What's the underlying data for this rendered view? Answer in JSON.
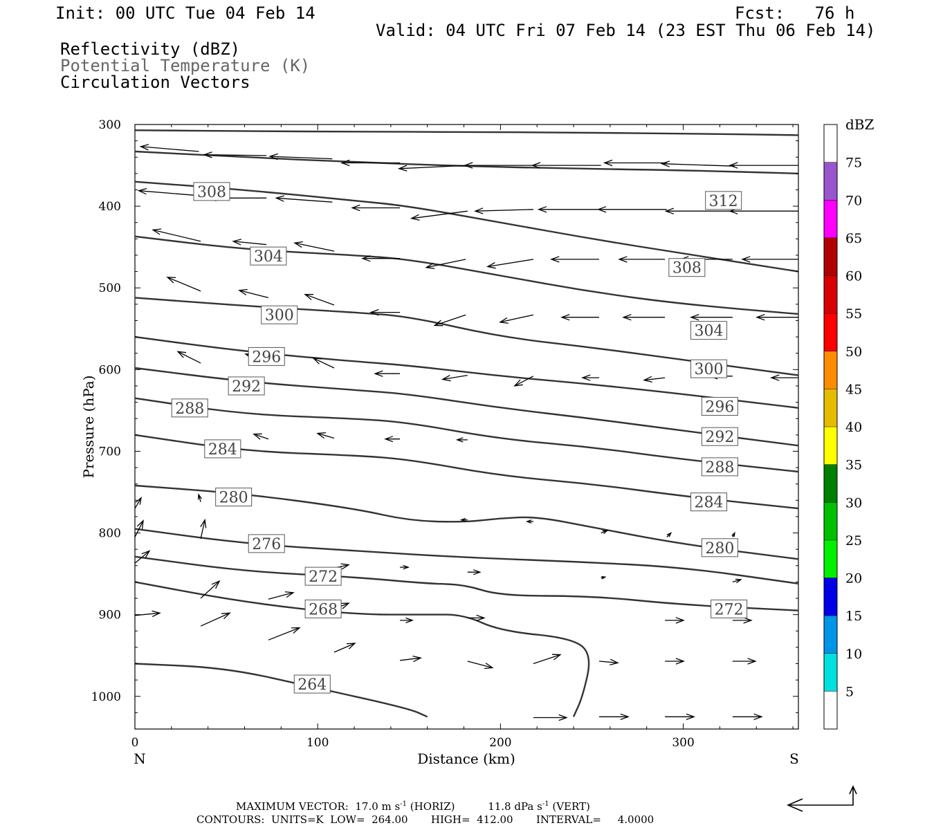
{
  "header": {
    "init": "Init: 00 UTC Tue 04 Feb 14",
    "fcst": "Fcst:   76 h",
    "valid": "Valid: 04 UTC Fri 07 Feb 14 (23 EST Thu 06 Feb 14)"
  },
  "legend_fields": {
    "reflectivity": "Reflectivity (dBZ)",
    "theta": "Potential Temperature (K)",
    "vectors": "Circulation Vectors"
  },
  "footer": {
    "max_vector_label": "MAXIMUM VECTOR:",
    "max_h": "17.0 m s",
    "exp": "-1",
    "horiz": "(HORIZ)",
    "max_v": "11.8 dPa s",
    "vert": "(VERT)",
    "contours": "CONTOURS:  UNITS=K  LOW=  264.00       HIGH=  412.00       INTERVAL=     4.0000"
  },
  "colors": {
    "contour": "#333333",
    "axis": "#000000",
    "label_text": "#444444"
  },
  "colorbar": {
    "unit": "dBZ",
    "levels": [
      5,
      10,
      15,
      20,
      25,
      30,
      35,
      40,
      45,
      50,
      55,
      60,
      65,
      70,
      75
    ],
    "colors": [
      "#ffffff",
      "#00e0e0",
      "#0095e6",
      "#0000e6",
      "#00f000",
      "#00c000",
      "#008000",
      "#ffff00",
      "#e6bc00",
      "#ff8c00",
      "#ff0000",
      "#d80000",
      "#b00000",
      "#ff00ff",
      "#9955cc",
      "#ffffff"
    ]
  },
  "chart_data": {
    "type": "cross-section",
    "xlabel": "Distance (km)",
    "ylabel": "Pressure (hPa)",
    "xlim": [
      0,
      363
    ],
    "ylim": [
      1040,
      300
    ],
    "x_ticks": [
      0,
      100,
      200,
      300
    ],
    "y_ticks": [
      300,
      400,
      500,
      600,
      700,
      800,
      900,
      1000
    ],
    "end_labels": {
      "left": "N",
      "right": "S"
    },
    "theta_contours": [
      {
        "x": [
          0,
          60,
          120,
          180,
          240,
          300,
          363
        ],
        "p": [
          307,
          308,
          309,
          309,
          310,
          311,
          313
        ]
      },
      {
        "x": [
          0,
          60,
          120,
          180,
          240,
          300,
          363
        ],
        "p": [
          333,
          340,
          346,
          351,
          354,
          356,
          360
        ]
      },
      {
        "x": [
          0,
          60,
          120,
          150,
          200,
          250,
          300,
          363
        ],
        "p": [
          370,
          380,
          393,
          400,
          420,
          440,
          458,
          480
        ]
      },
      {
        "x": [
          0,
          60,
          120,
          150,
          200,
          250,
          300,
          363
        ],
        "p": [
          437,
          453,
          460,
          465,
          485,
          505,
          520,
          532
        ]
      },
      {
        "x": [
          0,
          60,
          120,
          150,
          200,
          250,
          300,
          363
        ],
        "p": [
          512,
          522,
          530,
          535,
          560,
          573,
          588,
          607
        ]
      },
      {
        "x": [
          0,
          60,
          120,
          150,
          200,
          250,
          300,
          363
        ],
        "p": [
          560,
          578,
          590,
          595,
          608,
          618,
          630,
          647
        ]
      },
      {
        "x": [
          0,
          60,
          120,
          150,
          200,
          250,
          300,
          363
        ],
        "p": [
          598,
          615,
          625,
          630,
          647,
          660,
          675,
          693
        ]
      },
      {
        "x": [
          0,
          60,
          120,
          150,
          200,
          250,
          300,
          363
        ],
        "p": [
          635,
          655,
          660,
          665,
          685,
          695,
          710,
          725
        ]
      },
      {
        "x": [
          0,
          60,
          120,
          150,
          200,
          250,
          300,
          363
        ],
        "p": [
          680,
          700,
          705,
          710,
          730,
          740,
          755,
          770
        ]
      },
      {
        "x": [
          0,
          60,
          120,
          150,
          180,
          200,
          220,
          250,
          300,
          363
        ],
        "p": [
          742,
          752,
          770,
          785,
          787,
          782,
          780,
          793,
          814,
          832
        ]
      },
      {
        "x": [
          0,
          60,
          120,
          180,
          240,
          300,
          363
        ],
        "p": [
          795,
          813,
          822,
          830,
          835,
          842,
          862
        ]
      },
      {
        "x": [
          0,
          60,
          120,
          160,
          180,
          200,
          250,
          300,
          363
        ],
        "p": [
          829,
          847,
          854,
          862,
          863,
          877,
          877,
          888,
          895
        ]
      },
      {
        "x": [
          0,
          60,
          120,
          160,
          180,
          200,
          240,
          250,
          245,
          240
        ],
        "p": [
          860,
          885,
          900,
          900,
          900,
          920,
          929,
          950,
          1000,
          1025
        ]
      },
      {
        "x": [
          0,
          50,
          100,
          150,
          160
        ],
        "p": [
          960,
          965,
          990,
          1015,
          1025
        ]
      }
    ],
    "contour_labels": [
      {
        "text": "308",
        "x": 42,
        "p": 382
      },
      {
        "text": "312",
        "x": 322,
        "p": 393
      },
      {
        "text": "304",
        "x": 73,
        "p": 461
      },
      {
        "text": "308",
        "x": 302,
        "p": 475
      },
      {
        "text": "300",
        "x": 79,
        "p": 533
      },
      {
        "text": "304",
        "x": 314,
        "p": 552
      },
      {
        "text": "296",
        "x": 72,
        "p": 584
      },
      {
        "text": "300",
        "x": 314,
        "p": 599
      },
      {
        "text": "292",
        "x": 61,
        "p": 620
      },
      {
        "text": "296",
        "x": 320,
        "p": 645
      },
      {
        "text": "288",
        "x": 30,
        "p": 647
      },
      {
        "text": "292",
        "x": 320,
        "p": 682
      },
      {
        "text": "284",
        "x": 48,
        "p": 697
      },
      {
        "text": "288",
        "x": 320,
        "p": 719
      },
      {
        "text": "280",
        "x": 54,
        "p": 756
      },
      {
        "text": "284",
        "x": 314,
        "p": 762
      },
      {
        "text": "276",
        "x": 72,
        "p": 813
      },
      {
        "text": "280",
        "x": 320,
        "p": 818
      },
      {
        "text": "272",
        "x": 103,
        "p": 853
      },
      {
        "text": "268",
        "x": 103,
        "p": 893
      },
      {
        "text": "272",
        "x": 325,
        "p": 893
      },
      {
        "text": "264",
        "x": 97,
        "p": 985
      }
    ],
    "vectors": [
      {
        "x": 35,
        "p": 333,
        "dx": -28,
        "dp": -6
      },
      {
        "x": 72,
        "p": 338,
        "dx": -30,
        "dp": -1
      },
      {
        "x": 108,
        "p": 342,
        "dx": -30,
        "dp": -3
      },
      {
        "x": 145,
        "p": 347,
        "dx": -28,
        "dp": 0
      },
      {
        "x": 182,
        "p": 350,
        "dx": -33,
        "dp": 4
      },
      {
        "x": 218,
        "p": 350,
        "dx": -33,
        "dp": 0
      },
      {
        "x": 255,
        "p": 350,
        "dx": -33,
        "dp": 0
      },
      {
        "x": 291,
        "p": 347,
        "dx": -30,
        "dp": 0
      },
      {
        "x": 328,
        "p": 351,
        "dx": -35,
        "dp": -3
      },
      {
        "x": 363,
        "p": 350,
        "dx": -33,
        "dp": 0
      },
      {
        "x": 35,
        "p": 387,
        "dx": -29,
        "dp": -6
      },
      {
        "x": 72,
        "p": 390,
        "dx": -28,
        "dp": 0
      },
      {
        "x": 108,
        "p": 395,
        "dx": -27,
        "dp": -5
      },
      {
        "x": 145,
        "p": 402,
        "dx": -23,
        "dp": 0
      },
      {
        "x": 182,
        "p": 406,
        "dx": -27,
        "dp": 9
      },
      {
        "x": 218,
        "p": 404,
        "dx": -28,
        "dp": 2
      },
      {
        "x": 255,
        "p": 404,
        "dx": -30,
        "dp": 0
      },
      {
        "x": 291,
        "p": 404,
        "dx": -33,
        "dp": 0
      },
      {
        "x": 328,
        "p": 406,
        "dx": -33,
        "dp": 0
      },
      {
        "x": 363,
        "p": 406,
        "dx": -33,
        "dp": 0
      },
      {
        "x": 36,
        "p": 443,
        "dx": -23,
        "dp": -14
      },
      {
        "x": 72,
        "p": 447,
        "dx": -16,
        "dp": -4
      },
      {
        "x": 109,
        "p": 455,
        "dx": -19,
        "dp": -10
      },
      {
        "x": 145,
        "p": 464,
        "dx": -18,
        "dp": 0
      },
      {
        "x": 181,
        "p": 465,
        "dx": -19,
        "dp": 10
      },
      {
        "x": 218,
        "p": 465,
        "dx": -22,
        "dp": 9
      },
      {
        "x": 254,
        "p": 465,
        "dx": -23,
        "dp": 0
      },
      {
        "x": 290,
        "p": 465,
        "dx": -22,
        "dp": 0
      },
      {
        "x": 327,
        "p": 465,
        "dx": -25,
        "dp": 0
      },
      {
        "x": 363,
        "p": 465,
        "dx": -27,
        "dp": 0
      },
      {
        "x": 36,
        "p": 504,
        "dx": -16,
        "dp": -17
      },
      {
        "x": 73,
        "p": 512,
        "dx": -14,
        "dp": -9
      },
      {
        "x": 109,
        "p": 521,
        "dx": -14,
        "dp": -13
      },
      {
        "x": 145,
        "p": 530,
        "dx": -14,
        "dp": 0
      },
      {
        "x": 181,
        "p": 533,
        "dx": -15,
        "dp": 13
      },
      {
        "x": 218,
        "p": 533,
        "dx": -16,
        "dp": 9
      },
      {
        "x": 254,
        "p": 536,
        "dx": -18,
        "dp": 0
      },
      {
        "x": 290,
        "p": 536,
        "dx": -20,
        "dp": 0
      },
      {
        "x": 327,
        "p": 536,
        "dx": -20,
        "dp": 0
      },
      {
        "x": 363,
        "p": 536,
        "dx": -20,
        "dp": 0
      },
      {
        "x": 36,
        "p": 592,
        "dx": -11,
        "dp": -14
      },
      {
        "x": 73,
        "p": 589,
        "dx": -11,
        "dp": -8
      },
      {
        "x": 109,
        "p": 598,
        "dx": -10,
        "dp": -12
      },
      {
        "x": 145,
        "p": 605,
        "dx": -12,
        "dp": 0
      },
      {
        "x": 182,
        "p": 607,
        "dx": -12,
        "dp": 5
      },
      {
        "x": 218,
        "p": 608,
        "dx": -9,
        "dp": 12
      },
      {
        "x": 254,
        "p": 610,
        "dx": -8,
        "dp": 0
      },
      {
        "x": 290,
        "p": 610,
        "dx": -10,
        "dp": 3
      },
      {
        "x": 327,
        "p": 608,
        "dx": -11,
        "dp": 0
      },
      {
        "x": 363,
        "p": 610,
        "dx": -13,
        "dp": 0
      },
      {
        "x": 73,
        "p": 685,
        "dx": -7,
        "dp": -6
      },
      {
        "x": 109,
        "p": 684,
        "dx": -8,
        "dp": -6
      },
      {
        "x": 145,
        "p": 685,
        "dx": -7,
        "dp": 0
      },
      {
        "x": 182,
        "p": 686,
        "dx": -5,
        "dp": 0
      },
      {
        "x": 36,
        "p": 762,
        "dx": -1,
        "dp": -9
      },
      {
        "x": 0,
        "p": 770,
        "dx": 3,
        "dp": -13
      },
      {
        "x": 0,
        "p": 805,
        "dx": 4,
        "dp": -20
      },
      {
        "x": 0,
        "p": 837,
        "dx": 7,
        "dp": -15
      },
      {
        "x": 0,
        "p": 901,
        "dx": 12,
        "dp": -3
      },
      {
        "x": 36,
        "p": 807,
        "dx": 2,
        "dp": -23
      },
      {
        "x": 36,
        "p": 880,
        "dx": 9,
        "dp": -21
      },
      {
        "x": 36,
        "p": 914,
        "dx": 14,
        "dp": -16
      },
      {
        "x": 73,
        "p": 881,
        "dx": 12,
        "dp": -8
      },
      {
        "x": 73,
        "p": 931,
        "dx": 15,
        "dp": -15
      },
      {
        "x": 109,
        "p": 843,
        "dx": 7,
        "dp": -4
      },
      {
        "x": 109,
        "p": 893,
        "dx": 7,
        "dp": -7
      },
      {
        "x": 109,
        "p": 946,
        "dx": 10,
        "dp": -11
      },
      {
        "x": 145,
        "p": 907,
        "dx": 6,
        "dp": 0
      },
      {
        "x": 145,
        "p": 956,
        "dx": 10,
        "dp": -3
      },
      {
        "x": 182,
        "p": 904,
        "dx": 8,
        "dp": 0
      },
      {
        "x": 182,
        "p": 957,
        "dx": 12,
        "dp": 8
      },
      {
        "x": 218,
        "p": 960,
        "dx": 13,
        "dp": -11
      },
      {
        "x": 218,
        "p": 1026,
        "dx": 16,
        "dp": 0
      },
      {
        "x": 254,
        "p": 957,
        "dx": 9,
        "dp": 2
      },
      {
        "x": 254,
        "p": 1025,
        "dx": 14,
        "dp": 0
      },
      {
        "x": 290,
        "p": 907,
        "dx": 9,
        "dp": 0
      },
      {
        "x": 290,
        "p": 957,
        "dx": 9,
        "dp": 0
      },
      {
        "x": 290,
        "p": 1025,
        "dx": 14,
        "dp": 0
      },
      {
        "x": 327,
        "p": 907,
        "dx": 9,
        "dp": 0
      },
      {
        "x": 327,
        "p": 957,
        "dx": 11,
        "dp": 0
      },
      {
        "x": 327,
        "p": 1025,
        "dx": 14,
        "dp": 0
      },
      {
        "x": 291,
        "p": 805,
        "dx": 2,
        "dp": -5
      },
      {
        "x": 327,
        "p": 805,
        "dx": 1,
        "dp": -5
      },
      {
        "x": 255,
        "p": 800,
        "dx": 3,
        "dp": -3
      },
      {
        "x": 218,
        "p": 786,
        "dx": -3,
        "dp": 0
      },
      {
        "x": 182,
        "p": 784,
        "dx": -3,
        "dp": 0
      },
      {
        "x": 327,
        "p": 860,
        "dx": 4,
        "dp": -3
      },
      {
        "x": 182,
        "p": 848,
        "dx": 6,
        "dp": 0
      },
      {
        "x": 145,
        "p": 842,
        "dx": 4,
        "dp": 0
      },
      {
        "x": 255,
        "p": 855,
        "dx": 2,
        "dp": -1
      }
    ]
  }
}
